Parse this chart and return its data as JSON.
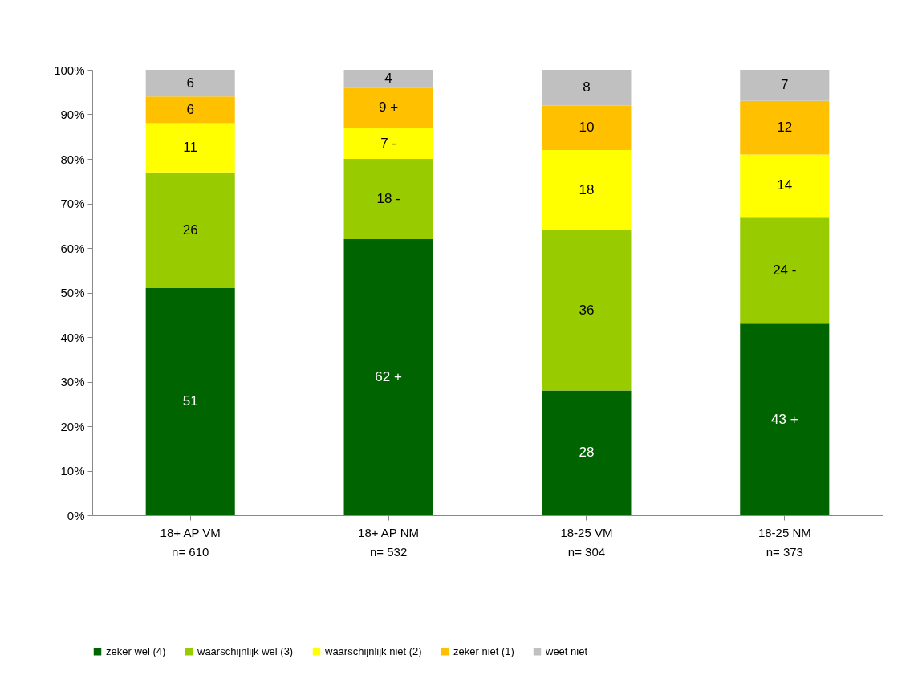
{
  "chart_data": {
    "type": "bar",
    "stacked": true,
    "categories": [
      "18+ AP VM\nn= 610",
      "18+ AP NM\nn= 532",
      "18-25 VM\nn= 304",
      "18-25 NM\nn= 373"
    ],
    "series": [
      {
        "name": "zeker wel (4)",
        "color": "#006400",
        "values": [
          51,
          62,
          28,
          43
        ],
        "value_labels": [
          "51",
          "62 +",
          "28",
          "43 +"
        ]
      },
      {
        "name": "waarschijnlijk wel (3)",
        "color": "#99cc00",
        "values": [
          26,
          18,
          36,
          24
        ],
        "value_labels": [
          "26",
          "18 -",
          "36",
          "24 -"
        ]
      },
      {
        "name": "waarschijnlijk niet (2)",
        "color": "#ffff00",
        "values": [
          11,
          7,
          18,
          14
        ],
        "value_labels": [
          "11",
          "7  -",
          "18",
          "14"
        ]
      },
      {
        "name": "zeker niet (1)",
        "color": "#ffc000",
        "values": [
          6,
          9,
          10,
          12
        ],
        "value_labels": [
          "6",
          "9  +",
          "10",
          "12"
        ]
      },
      {
        "name": "weet niet",
        "color": "#c0c0c0",
        "values": [
          6,
          4,
          8,
          7
        ],
        "value_labels": [
          "6",
          "4",
          "8",
          "7"
        ]
      }
    ],
    "ylim": [
      0,
      100
    ],
    "yticks": [
      {
        "value": 0,
        "label": "0%"
      },
      {
        "value": 10,
        "label": "10%"
      },
      {
        "value": 20,
        "label": "20%"
      },
      {
        "value": 30,
        "label": "30%"
      },
      {
        "value": 40,
        "label": "40%"
      },
      {
        "value": 50,
        "label": "50%"
      },
      {
        "value": 60,
        "label": "60%"
      },
      {
        "value": 70,
        "label": "70%"
      },
      {
        "value": 80,
        "label": "80%"
      },
      {
        "value": 90,
        "label": "90%"
      },
      {
        "value": 100,
        "label": "100%"
      }
    ],
    "grid": false,
    "legend": "bottom"
  }
}
